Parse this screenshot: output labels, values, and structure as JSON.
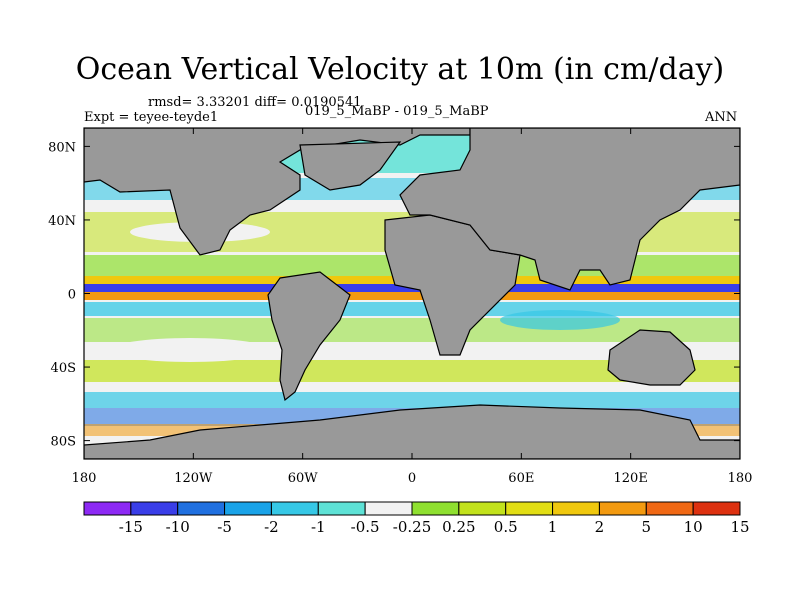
{
  "header": {
    "title": "Ocean Vertical Velocity at 10m (in cm/day)",
    "stats": "rmsd= 3.33201 diff= 0.0190541",
    "left_label": "Expt = teyee-teyde1",
    "center_label": "019_5_MaBP - 019_5_MaBP",
    "right_label": "ANN"
  },
  "map": {
    "x_ticks": [
      "180",
      "120W",
      "60W",
      "0",
      "60E",
      "120E",
      "180"
    ],
    "y_ticks": [
      "80N",
      "40N",
      "0",
      "40S",
      "80S"
    ],
    "land_color": "#999999"
  },
  "colorbar": {
    "labels": [
      "-15",
      "-10",
      "-5",
      "-2",
      "-1",
      "-0.5",
      "-0.25",
      "0.25",
      "0.5",
      "1",
      "2",
      "5",
      "10",
      "15"
    ],
    "colors": [
      "#8d29f4",
      "#3a3ee8",
      "#2070e0",
      "#1aa3e8",
      "#36c8e6",
      "#5ee2d6",
      "#f2f2f2",
      "#8fe030",
      "#c2e21c",
      "#e2de14",
      "#f0c80e",
      "#f39a10",
      "#f06814",
      "#dd3110"
    ]
  }
}
